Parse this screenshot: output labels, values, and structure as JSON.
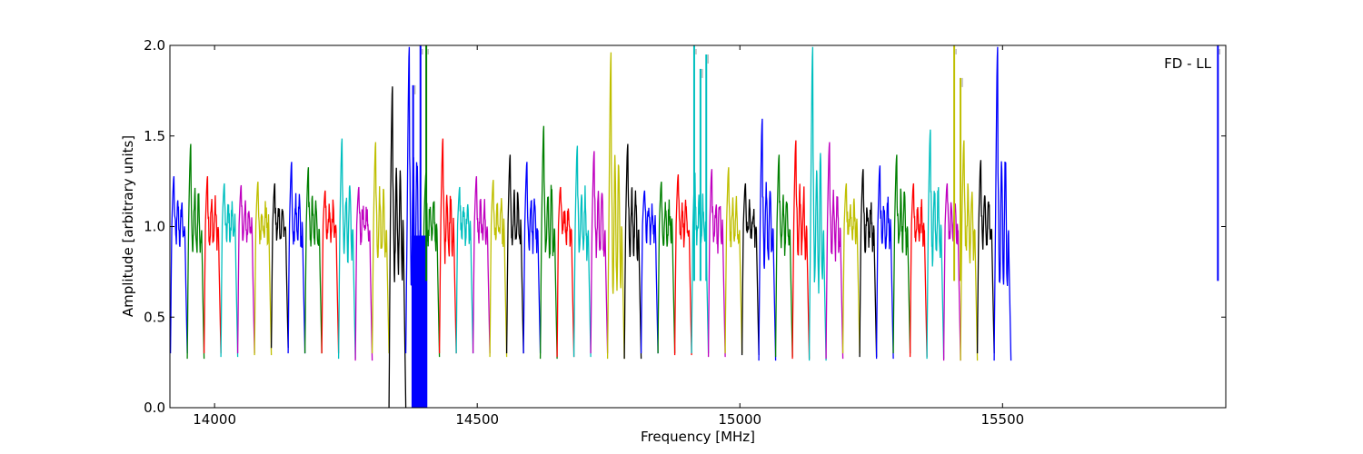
{
  "chart_data": {
    "type": "line",
    "title": "",
    "annotation": "FD - LL",
    "xlabel": "Frequency [MHz]",
    "ylabel": "Amplitude [arbitrary units]",
    "xlim": [
      13915,
      15925
    ],
    "ylim": [
      0,
      2.0
    ],
    "x_ticks": [
      14000,
      14500,
      15000,
      15500
    ],
    "y_ticks": [
      0.0,
      0.5,
      1.0,
      1.5,
      2.0
    ],
    "x_tick_labels": [
      "14000",
      "14500",
      "15000",
      "15500"
    ],
    "y_tick_labels": [
      "0.0",
      "0.5",
      "1.0",
      "1.5",
      "2.0"
    ],
    "grid": false,
    "legend": "none",
    "channel_width_mhz": 32,
    "channel_start_mhz": 13916,
    "color_cycle": [
      "#0000ff",
      "#008000",
      "#ff0000",
      "#00bfbf",
      "#bf00bf",
      "#bfbf00",
      "#000000"
    ],
    "ghost_color": "#bbbbbb",
    "channel_peaks": [
      1.28,
      1.46,
      1.28,
      1.24,
      1.23,
      1.25,
      1.24,
      1.36,
      1.33,
      1.2,
      1.49,
      1.22,
      1.47,
      1.78,
      2.0,
      1.3,
      1.49,
      1.22,
      1.28,
      1.26,
      1.4,
      1.36,
      1.56,
      1.22,
      1.45,
      1.42,
      1.97,
      1.46,
      1.2,
      1.25,
      1.29,
      1.3,
      1.32,
      1.33,
      1.24,
      1.6,
      1.4,
      1.48,
      2.0,
      1.47,
      1.24,
      1.32,
      1.34,
      1.4,
      1.24,
      1.54,
      1.24,
      1.48,
      1.37,
      2.0
    ],
    "channel_minima": [
      0.3,
      0.27,
      0.3,
      0.28,
      0.3,
      0.29,
      0.33,
      0.3,
      0.3,
      0.3,
      0.27,
      0.26,
      0.3,
      0.0,
      0.3,
      0.28,
      0.3,
      0.3,
      0.3,
      0.28,
      0.3,
      0.3,
      0.27,
      0.28,
      0.28,
      0.3,
      0.27,
      0.27,
      0.3,
      0.3,
      0.29,
      0.3,
      0.28,
      0.3,
      0.29,
      0.26,
      0.28,
      0.27,
      0.26,
      0.27,
      0.3,
      0.28,
      0.27,
      0.3,
      0.28,
      0.27,
      0.26,
      0.26,
      0.3,
      0.26
    ],
    "rfi_spikes": [
      {
        "x": 14403,
        "y": 2.0,
        "color": "#008000"
      },
      {
        "x": 14392,
        "y": 2.0,
        "color": "#0000ff"
      },
      {
        "x": 14378,
        "y": 1.78,
        "color": "#0000ff"
      },
      {
        "x": 14913,
        "y": 2.0,
        "color": "#00bfbf"
      },
      {
        "x": 14925,
        "y": 1.87,
        "color": "#00bfbf"
      },
      {
        "x": 14936,
        "y": 1.95,
        "color": "#00bfbf"
      },
      {
        "x": 15408,
        "y": 2.0,
        "color": "#bfbf00"
      },
      {
        "x": 15420,
        "y": 1.82,
        "color": "#bfbf00"
      },
      {
        "x": 15910,
        "y": 2.0,
        "color": "#0000ff"
      }
    ],
    "flagged_band": {
      "x_start": 14375,
      "x_end": 14405,
      "color": "#0000ff"
    }
  }
}
